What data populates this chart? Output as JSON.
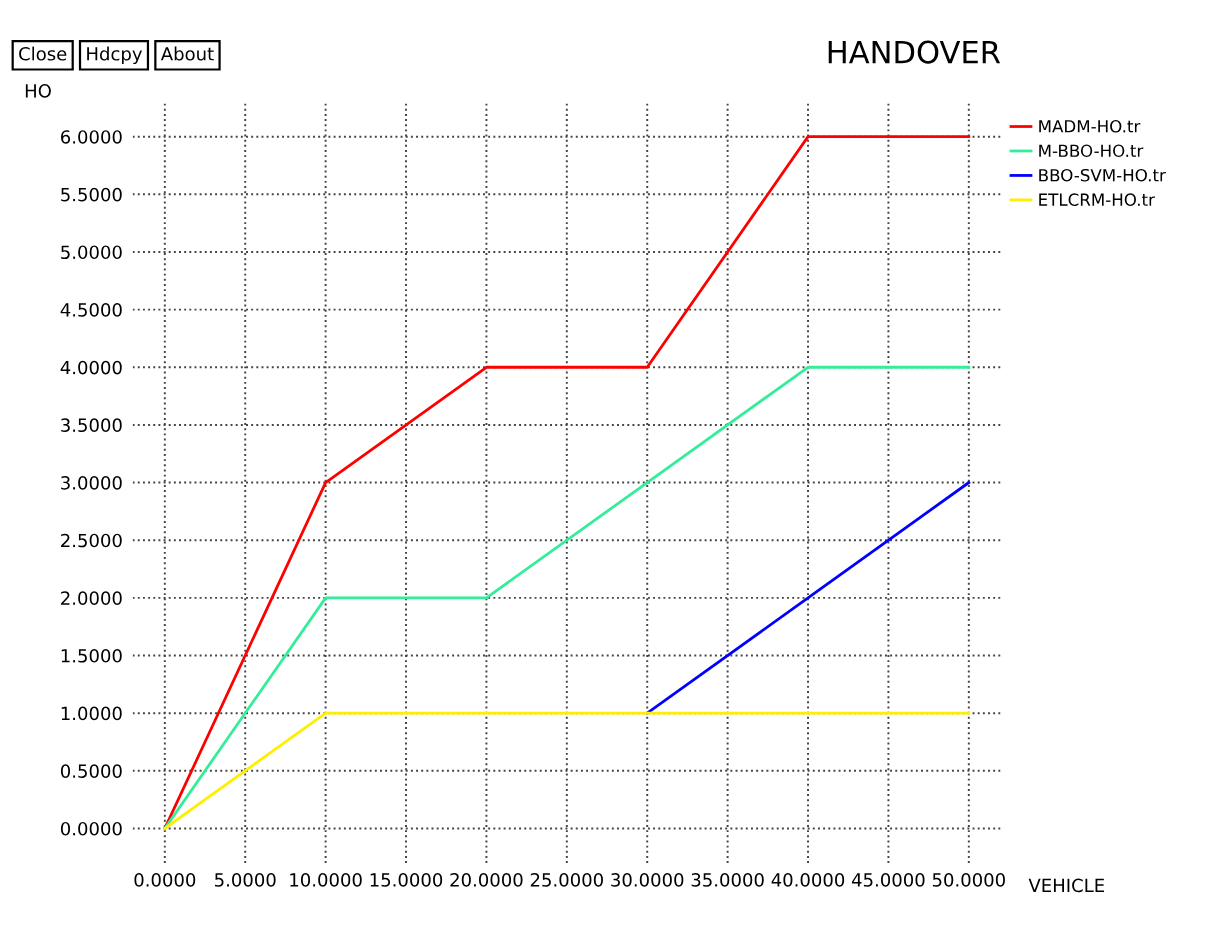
{
  "chart_data": {
    "type": "line",
    "title": "HANDOVER",
    "ylabel": "HO",
    "xlabel": "VEHICLE",
    "annotations": [
      "Close",
      "Hdcpy",
      "About"
    ],
    "x": [
      0,
      10,
      20,
      30,
      40,
      50
    ],
    "series": [
      {
        "name": "MADM-HO.tr",
        "color": "#ff0000",
        "values": [
          0,
          3,
          4,
          4,
          6,
          6
        ]
      },
      {
        "name": "M-BBO-HO.tr",
        "color": "#33ee99",
        "values": [
          0,
          2,
          2,
          3,
          4,
          4
        ]
      },
      {
        "name": "BBO-SVM-HO.tr",
        "color": "#0000ff",
        "values": [
          null,
          null,
          null,
          1,
          2,
          3
        ]
      },
      {
        "name": "ETLCRM-HO.tr",
        "color": "#ffee00",
        "values": [
          0,
          1,
          1,
          1,
          1,
          1
        ]
      }
    ],
    "xlim": [
      -2,
      52
    ],
    "ylim": [
      -0.3,
      6.3
    ],
    "xticks": [
      {
        "value": 0,
        "label": "0.0000"
      },
      {
        "value": 5,
        "label": "5.0000"
      },
      {
        "value": 10,
        "label": "10.0000"
      },
      {
        "value": 15,
        "label": "15.0000"
      },
      {
        "value": 20,
        "label": "20.0000"
      },
      {
        "value": 25,
        "label": "25.0000"
      },
      {
        "value": 30,
        "label": "30.0000"
      },
      {
        "value": 35,
        "label": "35.0000"
      },
      {
        "value": 40,
        "label": "40.0000"
      },
      {
        "value": 45,
        "label": "45.0000"
      },
      {
        "value": 50,
        "label": "50.0000"
      }
    ],
    "yticks": [
      {
        "value": 0,
        "label": "0.0000"
      },
      {
        "value": 0.5,
        "label": "0.5000"
      },
      {
        "value": 1,
        "label": "1.0000"
      },
      {
        "value": 1.5,
        "label": "1.5000"
      },
      {
        "value": 2,
        "label": "2.0000"
      },
      {
        "value": 2.5,
        "label": "2.5000"
      },
      {
        "value": 3,
        "label": "3.0000"
      },
      {
        "value": 3.5,
        "label": "3.5000"
      },
      {
        "value": 4,
        "label": "4.0000"
      },
      {
        "value": 4.5,
        "label": "4.5000"
      },
      {
        "value": 5,
        "label": "5.0000"
      },
      {
        "value": 5.5,
        "label": "5.5000"
      },
      {
        "value": 6,
        "label": "6.0000"
      }
    ],
    "grid": true,
    "legend": "right",
    "line_style": "solid"
  }
}
